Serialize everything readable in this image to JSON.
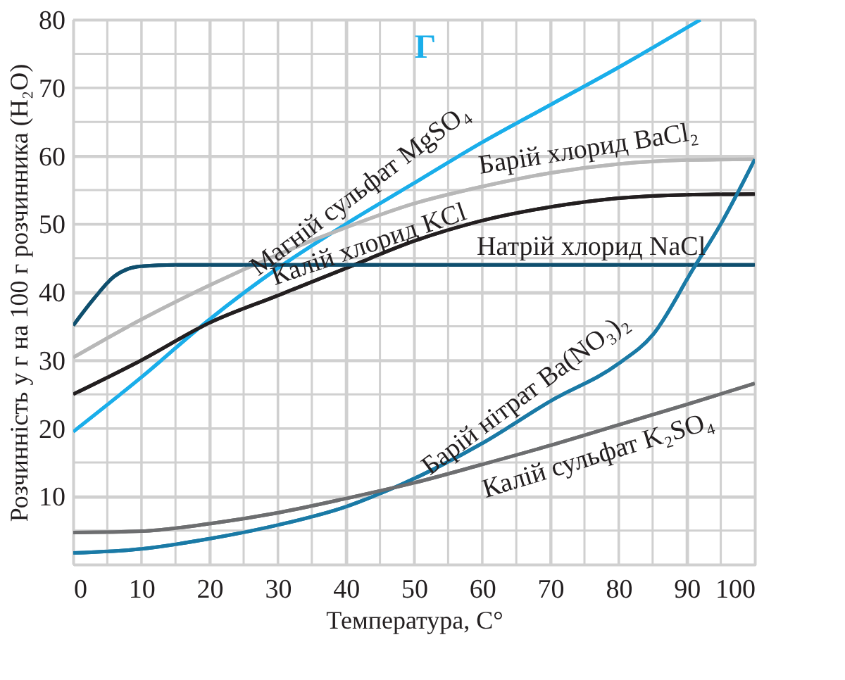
{
  "chart_data": {
    "type": "line",
    "xlabel": "Температура, С°",
    "ylabel": "Розчинність у г на 100 г розчинника (H₂O)",
    "annotations": [
      "Г"
    ],
    "xlim": [
      0,
      100
    ],
    "ylim": [
      0,
      80
    ],
    "xticks": [
      0,
      {
        "value": 5,
        "label": null
      },
      10,
      {
        "value": 15,
        "label": null
      },
      20,
      {
        "value": 25,
        "label": null
      },
      30,
      {
        "value": 35,
        "label": null
      },
      40,
      {
        "value": 45,
        "label": null
      },
      50,
      {
        "value": 55,
        "label": null
      },
      60,
      {
        "value": 65,
        "label": null
      },
      70,
      {
        "value": 75,
        "label": null
      },
      80,
      {
        "value": 85,
        "label": null
      },
      90,
      {
        "value": 95,
        "label": null
      },
      100
    ],
    "yticks": [
      {
        "value": 0,
        "label": null
      },
      {
        "value": 5,
        "label": null
      },
      10,
      {
        "value": 15,
        "label": null
      },
      20,
      {
        "value": 25,
        "label": null
      },
      30,
      {
        "value": 35,
        "label": null
      },
      40,
      {
        "value": 45,
        "label": null
      },
      50,
      {
        "value": 55,
        "label": null
      },
      60,
      {
        "value": 65,
        "label": null
      },
      70,
      {
        "value": 75,
        "label": null
      },
      80
    ],
    "grid": true,
    "legend": false,
    "marker": "none",
    "line_style": "solid",
    "series": [
      {
        "name": "Магній сульфат MgSO₄",
        "color": "#1aaeea",
        "x": [
          0,
          10,
          20,
          30,
          40,
          50,
          60,
          70,
          80,
          92
        ],
        "values": [
          19.5,
          27.5,
          36,
          43.5,
          50,
          56,
          62,
          67.5,
          73,
          80
        ]
      },
      {
        "name": "Барій хлорид BaCl₂",
        "color": "#b8b8b8",
        "x": [
          0,
          10,
          20,
          30,
          40,
          50,
          60,
          70,
          80,
          90,
          100
        ],
        "values": [
          30.4,
          36,
          41,
          45.5,
          49.5,
          53,
          55.5,
          57.5,
          58.8,
          59.4,
          59.5
        ]
      },
      {
        "name": "Калій хлорид KCl",
        "color": "#231f20",
        "x": [
          0,
          10,
          20,
          30,
          40,
          50,
          60,
          70,
          80,
          90,
          100
        ],
        "values": [
          25,
          30,
          35.5,
          39.5,
          43.5,
          47.5,
          50.5,
          52.5,
          53.8,
          54.3,
          54.4
        ]
      },
      {
        "name": "Натрій хлорид NaCl",
        "color": "#0f4f6e",
        "x": [
          0,
          3,
          6,
          8,
          10,
          15,
          30,
          50,
          70,
          100
        ],
        "values": [
          35.1,
          39,
          42.3,
          43.4,
          43.8,
          44,
          44,
          44,
          44,
          44
        ]
      },
      {
        "name": "Барій нітрат Ba(NO₃)₂",
        "color": "#1a7aa6",
        "x": [
          0,
          10,
          20,
          30,
          40,
          48,
          60,
          70,
          80,
          85,
          91,
          95,
          100
        ],
        "values": [
          1.7,
          2.3,
          3.8,
          5.8,
          8.5,
          11.7,
          17.8,
          24,
          29.5,
          33.7,
          43.5,
          50,
          59.5
        ]
      },
      {
        "name": "Калій сульфат K₂SO₄",
        "color": "#6d6e70",
        "x": [
          0,
          10,
          20,
          30,
          40,
          50,
          60,
          70,
          80,
          90,
          100
        ],
        "values": [
          4.7,
          4.9,
          6,
          7.6,
          9.7,
          12,
          14.7,
          17.5,
          20.5,
          23.5,
          26.6
        ]
      }
    ]
  }
}
